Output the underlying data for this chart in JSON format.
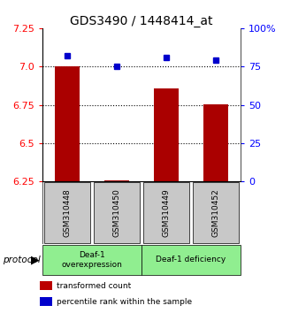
{
  "title": "GDS3490 / 1448414_at",
  "samples": [
    "GSM310448",
    "GSM310450",
    "GSM310449",
    "GSM310452"
  ],
  "transformed_counts": [
    7.0,
    6.255,
    6.855,
    6.755
  ],
  "percentile_ranks": [
    82,
    75,
    81,
    79
  ],
  "ylim_left": [
    6.25,
    7.25
  ],
  "ylim_right": [
    0,
    100
  ],
  "yticks_left": [
    6.25,
    6.5,
    6.75,
    7.0,
    7.25
  ],
  "yticks_right": [
    0,
    25,
    50,
    75,
    100
  ],
  "ytick_labels_right": [
    "0",
    "25",
    "50",
    "75",
    "100%"
  ],
  "hlines": [
    6.5,
    6.75,
    7.0
  ],
  "bar_color": "#aa0000",
  "dot_color": "#0000cc",
  "groups": [
    {
      "label": "Deaf-1\noverexpression",
      "indices": [
        0,
        1
      ]
    },
    {
      "label": "Deaf-1 deficiency",
      "indices": [
        2,
        3
      ]
    }
  ],
  "group_color": "#90ee90",
  "sample_box_color": "#c8c8c8",
  "protocol_label": "protocol",
  "legend_items": [
    {
      "color": "#bb0000",
      "label": "transformed count"
    },
    {
      "color": "#0000cc",
      "label": "percentile rank within the sample"
    }
  ],
  "title_fontsize": 10,
  "tick_fontsize": 8,
  "bar_width": 0.5
}
